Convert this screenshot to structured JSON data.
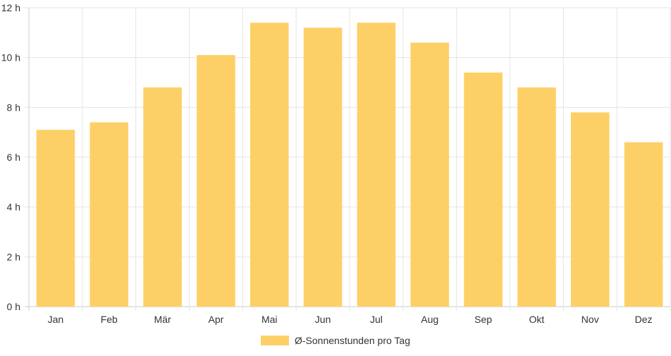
{
  "chart_data": {
    "type": "bar",
    "categories": [
      "Jan",
      "Feb",
      "Mär",
      "Apr",
      "Mai",
      "Jun",
      "Jul",
      "Aug",
      "Sep",
      "Okt",
      "Nov",
      "Dez"
    ],
    "series": [
      {
        "name": "Ø-Sonnenstunden pro Tag",
        "values": [
          7.1,
          7.4,
          8.8,
          10.1,
          11.4,
          11.2,
          11.4,
          10.6,
          9.4,
          8.8,
          7.8,
          6.6
        ]
      }
    ],
    "yticks": [
      "0 h",
      "2 h",
      "4 h",
      "6 h",
      "8 h",
      "10 h",
      "12 h"
    ],
    "ylim": [
      0,
      12
    ],
    "grid": true,
    "legend_position": "bottom",
    "colors": {
      "bar": "#fdd067",
      "grid": "#e5e5e5",
      "axis": "#cccccc",
      "text": "#333333"
    }
  }
}
